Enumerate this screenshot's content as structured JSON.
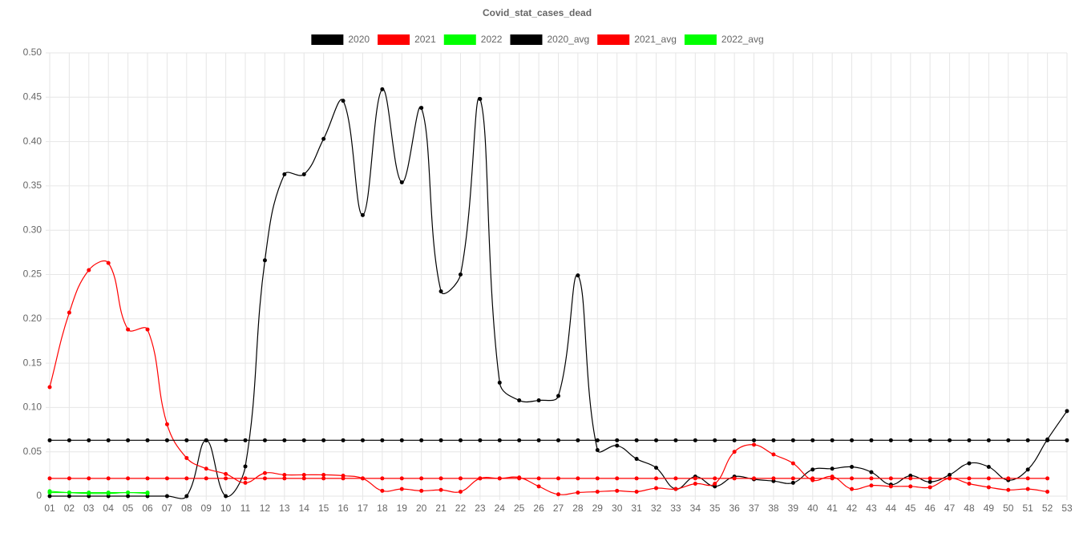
{
  "chart_data": {
    "type": "line",
    "title": "Covid_stat_cases_dead",
    "categories": [
      "01",
      "02",
      "03",
      "04",
      "05",
      "06",
      "07",
      "08",
      "09",
      "10",
      "11",
      "12",
      "13",
      "14",
      "15",
      "16",
      "17",
      "18",
      "19",
      "20",
      "21",
      "22",
      "23",
      "24",
      "25",
      "26",
      "27",
      "28",
      "29",
      "30",
      "31",
      "32",
      "33",
      "34",
      "35",
      "36",
      "37",
      "38",
      "39",
      "40",
      "41",
      "42",
      "43",
      "44",
      "45",
      "46",
      "47",
      "48",
      "49",
      "50",
      "51",
      "52",
      "53"
    ],
    "series": [
      {
        "name": "2020",
        "color": "#000000",
        "values": [
          0,
          0,
          0,
          0,
          0,
          0,
          0,
          0,
          0.063,
          0,
          0.0335,
          0.266,
          0.363,
          0.363,
          0.403,
          0.446,
          0.317,
          0.459,
          0.354,
          0.438,
          0.231,
          0.25,
          0.448,
          0.128,
          0.108,
          0.108,
          0.113,
          0.249,
          0.052,
          0.057,
          0.042,
          0.032,
          0.008,
          0.022,
          0.011,
          0.022,
          0.019,
          0.017,
          0.015,
          0.03,
          0.031,
          0.033,
          0.027,
          0.013,
          0.023,
          0.016,
          0.024,
          0.037,
          0.033,
          0.018,
          0.03,
          0.064,
          0.096
        ]
      },
      {
        "name": "2021",
        "color": "#ff0000",
        "values": [
          0.123,
          0.207,
          0.255,
          0.263,
          0.188,
          0.188,
          0.081,
          0.043,
          0.031,
          0.025,
          0.015,
          0.026,
          0.024,
          0.024,
          0.024,
          0.023,
          0.02,
          0.006,
          0.008,
          0.006,
          0.007,
          0.005,
          0.02,
          0.02,
          0.021,
          0.011,
          0.002,
          0.004,
          0.005,
          0.006,
          0.005,
          0.009,
          0.008,
          0.014,
          0.014,
          0.05,
          0.058,
          0.047,
          0.037,
          0.018,
          0.022,
          0.008,
          0.012,
          0.011,
          0.011,
          0.01,
          0.02,
          0.014,
          0.01,
          0.007,
          0.008,
          0.005,
          null
        ]
      },
      {
        "name": "2022",
        "color": "#00ff00",
        "values": [
          0.0055,
          0.004,
          0.003,
          0.003,
          0.004,
          0.003,
          null,
          null,
          null,
          null,
          null,
          null,
          null,
          null,
          null,
          null,
          null,
          null,
          null,
          null,
          null,
          null,
          null,
          null,
          null,
          null,
          null,
          null,
          null,
          null,
          null,
          null,
          null,
          null,
          null,
          null,
          null,
          null,
          null,
          null,
          null,
          null,
          null,
          null,
          null,
          null,
          null,
          null,
          null,
          null,
          null,
          null,
          null
        ]
      },
      {
        "name": "2020_avg",
        "color": "#000000",
        "values": [
          0.063,
          0.063,
          0.063,
          0.063,
          0.063,
          0.063,
          0.063,
          0.063,
          0.063,
          0.063,
          0.063,
          0.063,
          0.063,
          0.063,
          0.063,
          0.063,
          0.063,
          0.063,
          0.063,
          0.063,
          0.063,
          0.063,
          0.063,
          0.063,
          0.063,
          0.063,
          0.063,
          0.063,
          0.063,
          0.063,
          0.063,
          0.063,
          0.063,
          0.063,
          0.063,
          0.063,
          0.063,
          0.063,
          0.063,
          0.063,
          0.063,
          0.063,
          0.063,
          0.063,
          0.063,
          0.063,
          0.063,
          0.063,
          0.063,
          0.063,
          0.063,
          0.063,
          0.063
        ]
      },
      {
        "name": "2021_avg",
        "color": "#ff0000",
        "values": [
          0.02,
          0.02,
          0.02,
          0.02,
          0.02,
          0.02,
          0.02,
          0.02,
          0.02,
          0.02,
          0.02,
          0.02,
          0.02,
          0.02,
          0.02,
          0.02,
          0.02,
          0.02,
          0.02,
          0.02,
          0.02,
          0.02,
          0.02,
          0.02,
          0.02,
          0.02,
          0.02,
          0.02,
          0.02,
          0.02,
          0.02,
          0.02,
          0.02,
          0.02,
          0.02,
          0.02,
          0.02,
          0.02,
          0.02,
          0.02,
          0.02,
          0.02,
          0.02,
          0.02,
          0.02,
          0.02,
          0.02,
          0.02,
          0.02,
          0.02,
          0.02,
          0.02,
          null
        ]
      },
      {
        "name": "2022_avg",
        "color": "#00ff00",
        "values": [
          0.004,
          0.004,
          0.004,
          0.004,
          0.004,
          0.004,
          null,
          null,
          null,
          null,
          null,
          null,
          null,
          null,
          null,
          null,
          null,
          null,
          null,
          null,
          null,
          null,
          null,
          null,
          null,
          null,
          null,
          null,
          null,
          null,
          null,
          null,
          null,
          null,
          null,
          null,
          null,
          null,
          null,
          null,
          null,
          null,
          null,
          null,
          null,
          null,
          null,
          null,
          null,
          null,
          null,
          null,
          null
        ]
      }
    ],
    "ylim": [
      0,
      0.5
    ],
    "yticks": [
      0,
      0.05,
      {
        "value": 0.1,
        "label": "0.10"
      },
      0.15,
      {
        "value": 0.2,
        "label": "0.20"
      },
      0.25,
      {
        "value": 0.3,
        "label": "0.30"
      },
      0.35,
      {
        "value": 0.4,
        "label": "0.40"
      },
      0.45,
      {
        "value": 0.5,
        "label": "0.50"
      }
    ],
    "grid": true,
    "legend": "top"
  }
}
